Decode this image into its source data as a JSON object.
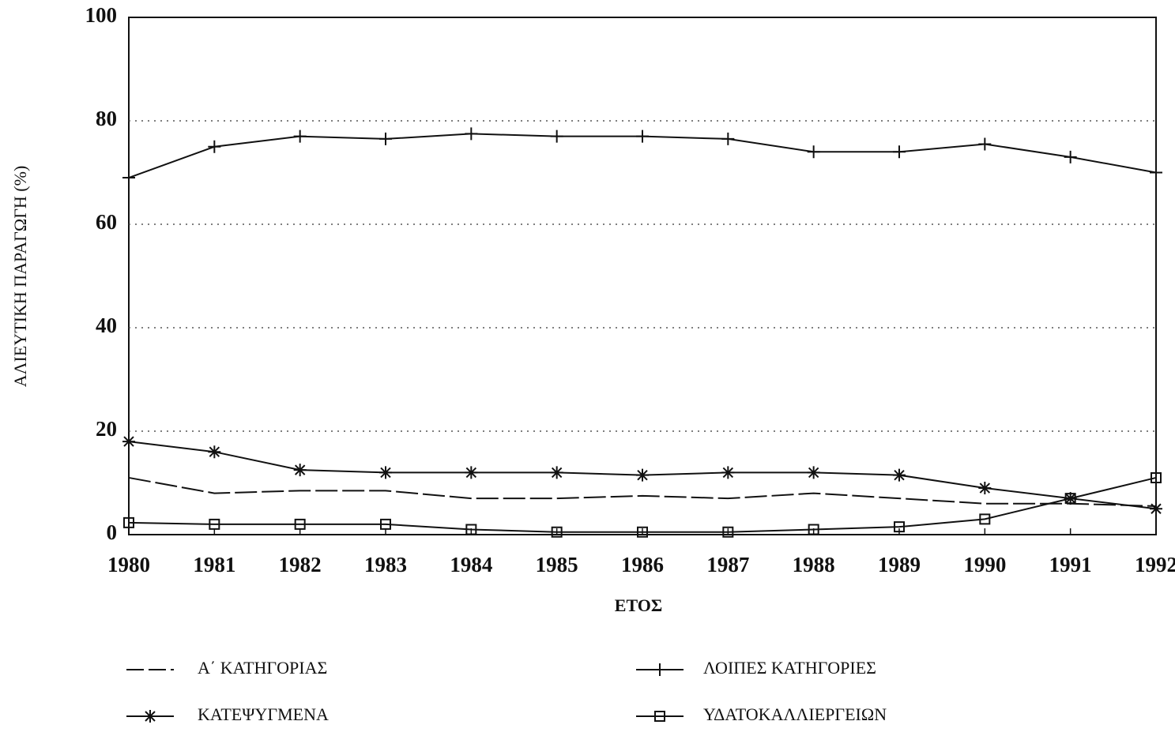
{
  "chart_data": {
    "type": "line",
    "xlabel": "ΕΤΟΣ",
    "ylabel": "ΑΛΙΕΥΤΙΚΗ ΠΑΡΑΓΩΓΗ (%)",
    "x": [
      1980,
      1981,
      1982,
      1983,
      1984,
      1985,
      1986,
      1987,
      1988,
      1989,
      1990,
      1991,
      1992
    ],
    "xlim": [
      1980,
      1992
    ],
    "xticks": [
      1980,
      1981,
      1982,
      1983,
      1984,
      1985,
      1986,
      1987,
      1988,
      1989,
      1990,
      1991,
      1992
    ],
    "ylim": [
      0,
      100
    ],
    "yticks": [
      0,
      20,
      40,
      60,
      80,
      100
    ],
    "grid": true,
    "legend": "bottom",
    "series": [
      {
        "name": "Α΄ ΚΑΤΗΓΟΡΙΑΣ",
        "color": "#111111",
        "marker": "none",
        "dash": true,
        "values": [
          11,
          8,
          8.5,
          8.5,
          7,
          7,
          7.5,
          7,
          8,
          7,
          6,
          6,
          5.5
        ]
      },
      {
        "name": "ΚΑΤΕΨΥΓΜΕΝΑ",
        "color": "#111111",
        "marker": "star",
        "dash": false,
        "values": [
          18,
          16,
          12.5,
          12,
          12,
          12,
          11.5,
          12,
          12,
          11.5,
          9,
          7,
          5
        ]
      },
      {
        "name": "ΛΟΙΠΕΣ ΚΑΤΗΓΟΡΙΕΣ",
        "color": "#111111",
        "marker": "plus",
        "dash": false,
        "values": [
          69,
          75,
          77,
          76.5,
          77.5,
          77,
          77,
          76.5,
          74,
          74,
          75.5,
          73,
          70
        ]
      },
      {
        "name": "ΥΔΑΤΟΚΑΛΛΙΕΡΓΕΙΩΝ",
        "color": "#111111",
        "marker": "square",
        "dash": false,
        "values": [
          2.3,
          2,
          2,
          2,
          1,
          0.5,
          0.5,
          0.5,
          1,
          1.5,
          3,
          7,
          11
        ]
      }
    ]
  }
}
